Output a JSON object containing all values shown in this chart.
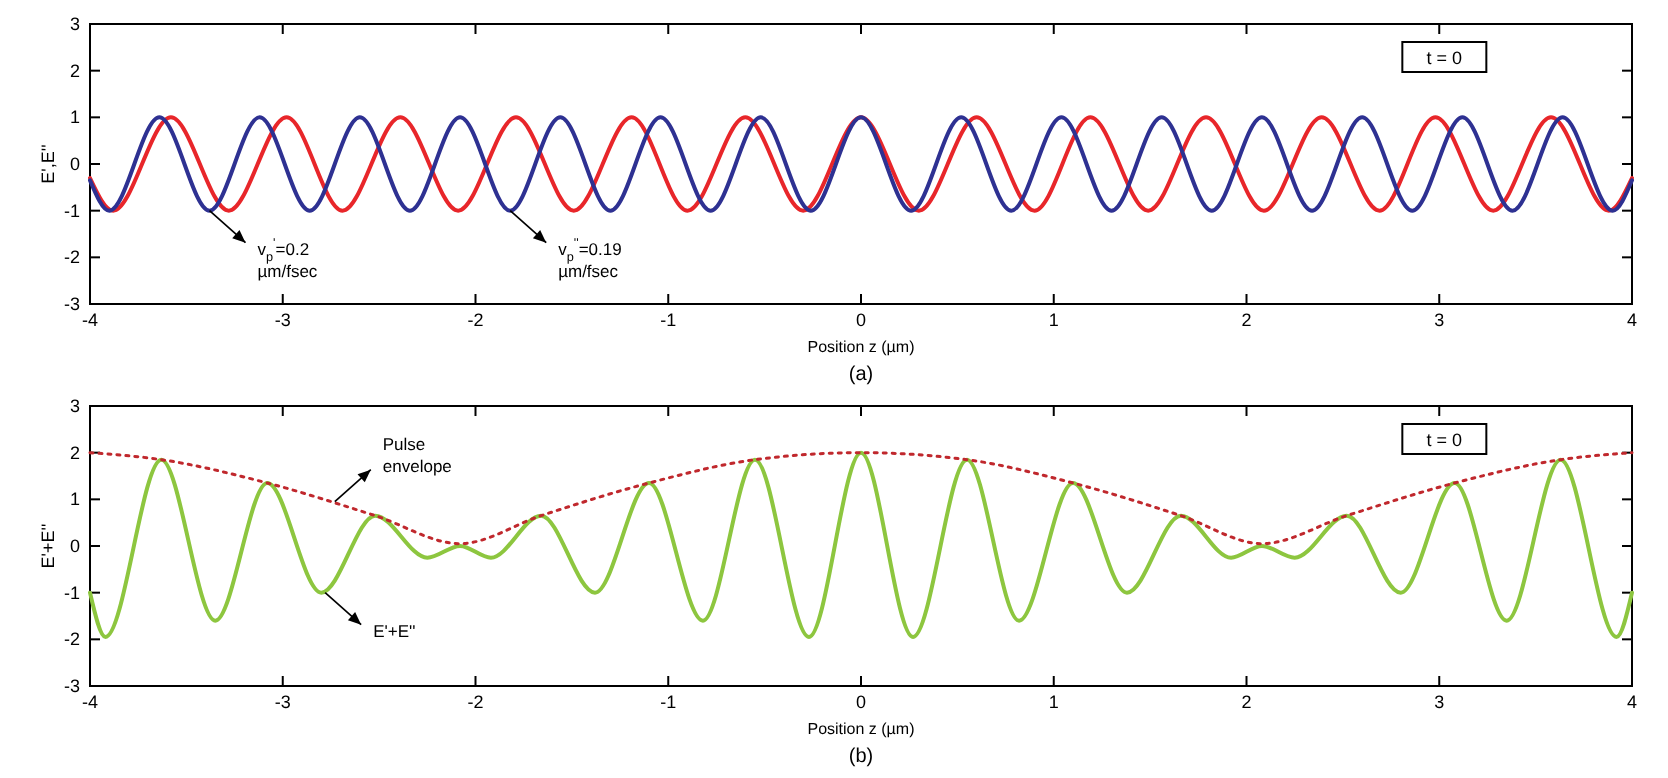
{
  "chart_data": [
    {
      "type": "line",
      "ylabel": "E',E''",
      "xlabel": "Position z  (µm)",
      "xlim": [
        -4,
        4
      ],
      "ylim": [
        -3,
        3
      ],
      "xticks": [
        -4,
        -3,
        -2,
        -1,
        0,
        1,
        2,
        3,
        4
      ],
      "yticks": [
        -3,
        -2,
        -1,
        0,
        1,
        2,
        3
      ],
      "grid": false,
      "marker": "none",
      "annotations": [
        "t = 0",
        "(a)",
        {
          "text": "v$_{p}$$^{'}$=0.2 µm/fsec",
          "x": -3.38,
          "y": -1
        },
        {
          "text": "v$_{p}$$^{''}$=0.19 µm/fsec",
          "x": -1.82,
          "y": -1
        }
      ],
      "series": [
        {
          "color": "#e8262a",
          "line_style": "solid",
          "x": [
            -4,
            -3.88,
            -3.58,
            -3.28,
            -2.98,
            -2.69,
            -2.39,
            -2.09,
            -1.79,
            -1.49,
            -1.19,
            -0.9,
            -0.6,
            -0.3,
            0,
            0.3,
            0.6,
            0.9,
            1.19,
            1.49,
            1.79,
            2.09,
            2.39,
            2.69,
            2.98,
            3.28,
            3.58,
            3.88,
            4
          ],
          "values": [
            -0.3,
            -1,
            1,
            -1,
            1,
            -1,
            1,
            -1,
            1,
            -1,
            1,
            -1,
            1,
            -1,
            1,
            -1,
            1,
            -1,
            1,
            -1,
            1,
            -1,
            1,
            -1,
            1,
            -1,
            1,
            -1,
            -0.3
          ]
        },
        {
          "color": "#2e3192",
          "line_style": "solid",
          "x": [
            -4,
            -3.9,
            -3.64,
            -3.38,
            -3.12,
            -2.86,
            -2.6,
            -2.34,
            -2.08,
            -1.82,
            -1.56,
            -1.3,
            -1.04,
            -0.78,
            -0.52,
            -0.26,
            0,
            0.26,
            0.52,
            0.78,
            1.04,
            1.3,
            1.56,
            1.82,
            2.08,
            2.34,
            2.6,
            2.86,
            3.12,
            3.38,
            3.64,
            3.9,
            4
          ],
          "values": [
            -0.35,
            -1,
            1,
            -1,
            1,
            -1,
            1,
            -1,
            1,
            -1,
            1,
            -1,
            1,
            -1,
            1,
            -1,
            1,
            -1,
            1,
            -1,
            1,
            -1,
            1,
            -1,
            1,
            -1,
            1,
            -1,
            1,
            -1,
            1,
            -1,
            -0.35
          ]
        }
      ]
    },
    {
      "type": "line",
      "ylabel": "E'+E''",
      "xlabel": "Position z  (µm)",
      "xlim": [
        -4,
        4
      ],
      "ylim": [
        -3,
        3
      ],
      "xticks": [
        -4,
        -3,
        -2,
        -1,
        0,
        1,
        2,
        3,
        4
      ],
      "yticks": [
        -3,
        -2,
        -1,
        0,
        1,
        2,
        3
      ],
      "grid": false,
      "marker": "none",
      "annotations": [
        "t = 0",
        "(b)",
        {
          "text": "Pulse envelope",
          "x": -2.73,
          "y": 0.95
        },
        {
          "text": "E'+E''",
          "x": -2.78,
          "y": -1
        }
      ],
      "series": [
        {
          "color": "#8dc63f",
          "line_style": "solid",
          "x": [
            -4,
            -3.92,
            -3.63,
            -3.35,
            -3.08,
            -2.8,
            -2.52,
            -2.25,
            -2.08,
            -1.92,
            -1.66,
            -1.38,
            -1.1,
            -0.82,
            -0.55,
            -0.27,
            0,
            0.27,
            0.55,
            0.82,
            1.1,
            1.38,
            1.66,
            1.92,
            2.08,
            2.25,
            2.52,
            2.8,
            3.08,
            3.35,
            3.63,
            3.92,
            4
          ],
          "values": [
            -1,
            -1.95,
            1.85,
            -1.6,
            1.35,
            -1,
            0.65,
            -0.25,
            0,
            -0.25,
            0.65,
            -1,
            1.35,
            -1.6,
            1.85,
            -1.95,
            2,
            -1.95,
            1.85,
            -1.6,
            1.35,
            -1,
            0.65,
            -0.25,
            0,
            -0.25,
            0.65,
            -1,
            1.35,
            -1.6,
            1.85,
            -1.95,
            -1
          ]
        },
        {
          "color": "#c0282d",
          "line_style": "dotted",
          "x": [
            -4,
            -3.63,
            -3.08,
            -2.52,
            -2.08,
            -1.66,
            -1.1,
            -0.55,
            0,
            0.55,
            1.1,
            1.66,
            2.08,
            2.52,
            3.08,
            3.63,
            4
          ],
          "values": [
            2,
            1.85,
            1.35,
            0.65,
            0.05,
            0.65,
            1.35,
            1.85,
            2,
            1.85,
            1.35,
            0.65,
            0.05,
            0.65,
            1.35,
            1.85,
            2
          ]
        }
      ]
    }
  ]
}
